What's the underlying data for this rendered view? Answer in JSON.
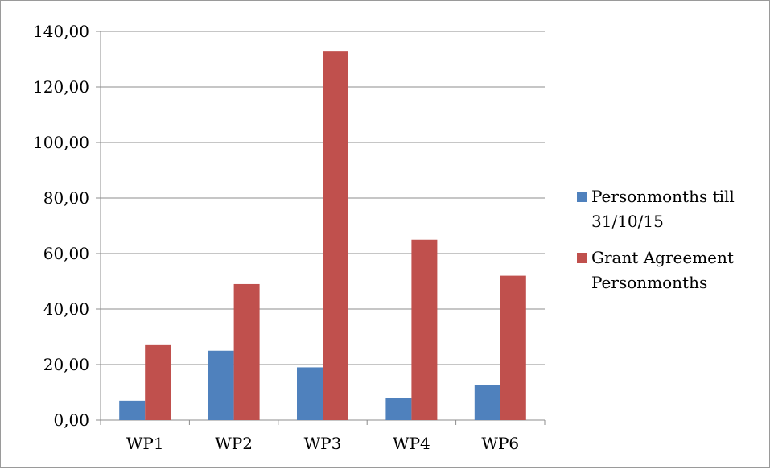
{
  "chart_data": {
    "type": "bar",
    "categories": [
      "WP1",
      "WP2",
      "WP3",
      "WP4",
      "WP6"
    ],
    "series": [
      {
        "name": "Personmonths till 31/10/15",
        "color": "#4f81bd",
        "values": [
          7,
          25,
          19,
          8,
          12.5
        ]
      },
      {
        "name": "Grant Agreement Personmonths",
        "color": "#c0504d",
        "values": [
          27,
          49,
          133,
          65,
          52
        ]
      }
    ],
    "ylim": [
      0,
      140
    ],
    "yticks": [
      "0,00",
      "20,00",
      "40,00",
      "60,00",
      "80,00",
      "100,00",
      "120,00",
      "140,00"
    ],
    "grid": true,
    "legend": "right"
  },
  "legend": {
    "items": [
      {
        "label": "Personmonths till\n31/10/15",
        "color": "#4f81bd"
      },
      {
        "label": "Grant Agreement\nPersonmonths",
        "color": "#c0504d"
      }
    ]
  }
}
